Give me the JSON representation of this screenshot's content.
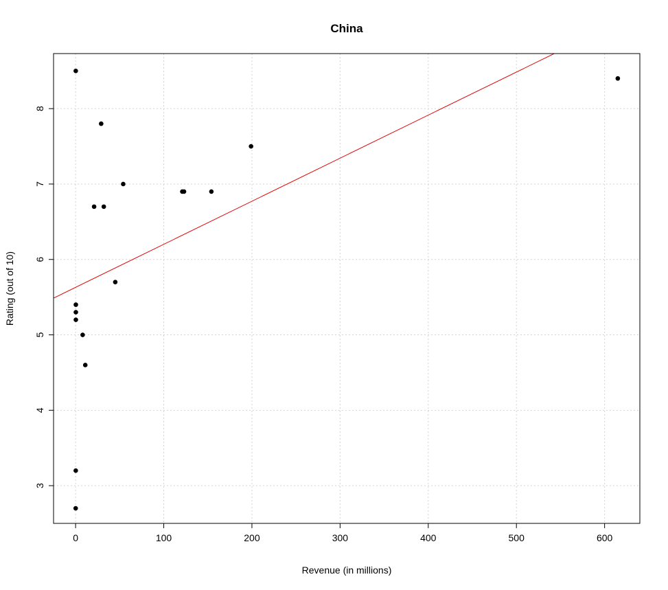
{
  "chart_data": {
    "type": "scatter",
    "title": "China",
    "xlabel": "Revenue (in millions)",
    "ylabel": "Rating (out of 10)",
    "xlim": [
      -25,
      640
    ],
    "ylim": [
      2.5,
      8.73
    ],
    "x_ticks": [
      0,
      100,
      200,
      300,
      400,
      500,
      600
    ],
    "y_ticks": [
      3,
      4,
      5,
      6,
      7,
      8
    ],
    "grid": true,
    "series": [
      {
        "points": [
          [
            0.2,
            8.5
          ],
          [
            29,
            7.8
          ],
          [
            199,
            7.5
          ],
          [
            54,
            7.0
          ],
          [
            21,
            6.7
          ],
          [
            32,
            6.7
          ],
          [
            121,
            6.9
          ],
          [
            123,
            6.9
          ],
          [
            154,
            6.9
          ],
          [
            615,
            8.4
          ],
          [
            45,
            5.7
          ],
          [
            0.3,
            5.4
          ],
          [
            0.3,
            5.3
          ],
          [
            0.3,
            5.2
          ],
          [
            8,
            5.0
          ],
          [
            11,
            4.6
          ],
          [
            0.2,
            3.2
          ],
          [
            0.1,
            2.7
          ]
        ]
      }
    ],
    "trend_line": {
      "intercept": 5.63,
      "slope": 0.00571
    },
    "colors": {
      "points": "#000000",
      "trend_line": "#e00000",
      "grid": "#d3d3d3"
    }
  }
}
